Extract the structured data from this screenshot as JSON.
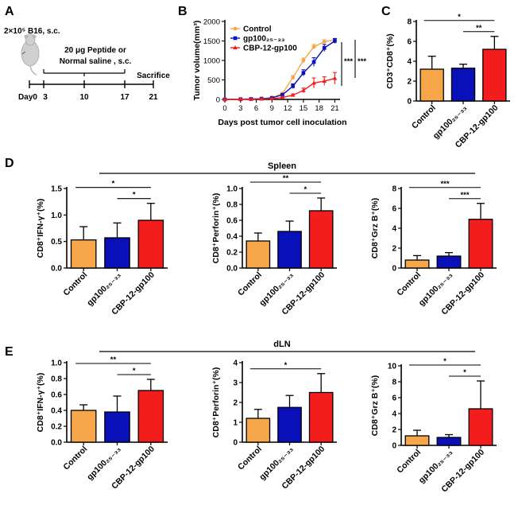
{
  "colors": {
    "control": "#F7A64A",
    "gp100": "#0A10B8",
    "cbp": "#F41D1D",
    "ink": "#000000",
    "mouse": "#CFCFCF",
    "mouse_dark": "#A6A6A6"
  },
  "panel_labels": {
    "a": "A",
    "b": "B",
    "c": "C",
    "d": "D",
    "e": "E"
  },
  "schedule": {
    "cells": "2×10⁵ B16, s.c.",
    "treatment_line1": "20 μg Peptide or",
    "treatment_line2": "Normal saline , s.c.",
    "sacrifice": "Sacrifice",
    "days": [
      "Day0",
      "3",
      "10",
      "17",
      "21"
    ]
  },
  "section_titles": {
    "spleen": "Spleen",
    "dln": "dLN"
  },
  "chart_data": [
    {
      "id": "B",
      "type": "line",
      "xlabel": "Days post tumor cell inoculation",
      "ylabel": "Tumor volume(mm³)",
      "xlim": [
        0,
        22
      ],
      "ylim": [
        0,
        2000
      ],
      "xticks": [
        0,
        3,
        6,
        9,
        12,
        15,
        18,
        21
      ],
      "yticks": [
        0,
        500,
        1000,
        1500,
        2000
      ],
      "legend": [
        "Control",
        "gp100₂₅₋₃₃",
        "CBP-12-gp100"
      ],
      "legend_position": "top-left",
      "significance": [
        "***",
        "***"
      ],
      "series": [
        {
          "name": "Control",
          "marker": "circle",
          "x": [
            0,
            3,
            5,
            7,
            9,
            11,
            13,
            15,
            17,
            19,
            21
          ],
          "y": [
            0,
            5,
            10,
            20,
            40,
            150,
            560,
            1000,
            1350,
            1480,
            1530
          ],
          "err": [
            0,
            3,
            5,
            8,
            10,
            25,
            50,
            60,
            60,
            50,
            40
          ]
        },
        {
          "name": "gp100₂₅₋₃₃",
          "marker": "square",
          "x": [
            0,
            3,
            5,
            7,
            9,
            11,
            13,
            15,
            17,
            19,
            21
          ],
          "y": [
            0,
            5,
            10,
            20,
            40,
            120,
            340,
            680,
            960,
            1320,
            1500
          ],
          "err": [
            0,
            3,
            5,
            8,
            10,
            25,
            60,
            80,
            110,
            90,
            60
          ]
        },
        {
          "name": "CBP-12-gp100",
          "marker": "triangle",
          "x": [
            0,
            3,
            5,
            7,
            9,
            11,
            13,
            15,
            17,
            19,
            21
          ],
          "y": [
            0,
            5,
            8,
            15,
            20,
            50,
            110,
            230,
            420,
            470,
            540
          ],
          "err": [
            0,
            3,
            5,
            5,
            8,
            15,
            30,
            60,
            130,
            110,
            150
          ]
        }
      ]
    },
    {
      "id": "C",
      "type": "bar",
      "categories": [
        "Control",
        "gp100₂₅₋₃₃",
        "CBP-12-gp100"
      ],
      "values": [
        3.2,
        3.3,
        5.2
      ],
      "errors": [
        1.3,
        0.4,
        1.3
      ],
      "ylabel": "CD3⁺CD8⁺(%)",
      "ylim": [
        0,
        8
      ],
      "yticks": [
        0,
        2,
        4,
        6,
        8
      ],
      "yticklabels": [
        "0",
        "2",
        "4",
        "6",
        "8"
      ],
      "significance": [
        {
          "from": 0,
          "to": 2,
          "label": "*"
        },
        {
          "from": 1,
          "to": 2,
          "label": "**"
        }
      ]
    },
    {
      "id": "D1",
      "type": "bar",
      "categories": [
        "Control",
        "gp100₂₅₋₃₃",
        "CBP-12-gp100"
      ],
      "values": [
        0.53,
        0.57,
        0.9
      ],
      "errors": [
        0.25,
        0.28,
        0.32
      ],
      "ylabel": "CD8⁺IFN-γ⁺(%)",
      "ylim": [
        0,
        1.5
      ],
      "yticks": [
        0,
        0.5,
        1.0,
        1.5
      ],
      "yticklabels": [
        "0.0",
        "0.5",
        "1.0",
        "1.5"
      ],
      "significance": [
        {
          "from": 0,
          "to": 2,
          "label": "*"
        },
        {
          "from": 1,
          "to": 2,
          "label": "*"
        }
      ]
    },
    {
      "id": "D2",
      "type": "bar",
      "categories": [
        "Control",
        "gp100₂₅₋₃₃",
        "CBP-12-gp100"
      ],
      "values": [
        0.34,
        0.46,
        0.72
      ],
      "errors": [
        0.1,
        0.13,
        0.16
      ],
      "ylabel": "CD8⁺Perforin⁺(%)",
      "ylim": [
        0,
        1.0
      ],
      "yticks": [
        0,
        0.2,
        0.4,
        0.6,
        0.8,
        1.0
      ],
      "yticklabels": [
        "0.0",
        "0.2",
        "0.4",
        "0.6",
        "0.8",
        "1.0"
      ],
      "significance": [
        {
          "from": 0,
          "to": 2,
          "label": "**"
        },
        {
          "from": 1,
          "to": 2,
          "label": "*"
        }
      ]
    },
    {
      "id": "D3",
      "type": "bar",
      "categories": [
        "Control",
        "gp100₂₅₋₃₃",
        "CBP-12-gp100"
      ],
      "values": [
        0.8,
        1.2,
        4.9
      ],
      "errors": [
        0.45,
        0.35,
        1.6
      ],
      "ylabel": "CD8⁺Grz B⁺(%)",
      "ylim": [
        0,
        8
      ],
      "yticks": [
        0,
        2,
        4,
        6,
        8
      ],
      "yticklabels": [
        "0",
        "2",
        "4",
        "6",
        "8"
      ],
      "significance": [
        {
          "from": 0,
          "to": 2,
          "label": "***"
        },
        {
          "from": 1,
          "to": 2,
          "label": "***"
        }
      ]
    },
    {
      "id": "E1",
      "type": "bar",
      "categories": [
        "Control",
        "gp100₂₅₋₃₃",
        "CBP-12-gp100"
      ],
      "values": [
        0.4,
        0.38,
        0.65
      ],
      "errors": [
        0.07,
        0.2,
        0.14
      ],
      "ylabel": "CD8⁺IFN-γ⁺(%)",
      "ylim": [
        0,
        1.0
      ],
      "yticks": [
        0,
        0.2,
        0.4,
        0.6,
        0.8,
        1.0
      ],
      "yticklabels": [
        "0.0",
        "0.2",
        "0.4",
        "0.6",
        "0.8",
        "1.0"
      ],
      "significance": [
        {
          "from": 0,
          "to": 2,
          "label": "**"
        },
        {
          "from": 1,
          "to": 2,
          "label": "*"
        }
      ]
    },
    {
      "id": "E2",
      "type": "bar",
      "categories": [
        "Control",
        "gp100₂₅₋₃₃",
        "CBP-12-gp100"
      ],
      "values": [
        1.2,
        1.75,
        2.5
      ],
      "errors": [
        0.45,
        0.6,
        0.95
      ],
      "ylabel": "CD8⁺Perforin⁺(%)",
      "ylim": [
        0,
        4
      ],
      "yticks": [
        0,
        1,
        2,
        3,
        4
      ],
      "yticklabels": [
        "0",
        "1",
        "2",
        "3",
        "4"
      ],
      "significance": [
        {
          "from": 0,
          "to": 2,
          "label": "*"
        }
      ]
    },
    {
      "id": "E3",
      "type": "bar",
      "categories": [
        "Control",
        "gp100₂₅₋₃₃",
        "CBP-12-gp100"
      ],
      "values": [
        1.2,
        1.0,
        4.6
      ],
      "errors": [
        0.7,
        0.35,
        3.5
      ],
      "ylabel": "CD8⁺Grz B⁺(%)",
      "ylim": [
        0,
        10
      ],
      "yticks": [
        0,
        2,
        4,
        6,
        8,
        10
      ],
      "yticklabels": [
        "0",
        "2",
        "4",
        "6",
        "8",
        "10"
      ],
      "significance": [
        {
          "from": 0,
          "to": 2,
          "label": "*"
        },
        {
          "from": 1,
          "to": 2,
          "label": "*"
        }
      ]
    }
  ]
}
